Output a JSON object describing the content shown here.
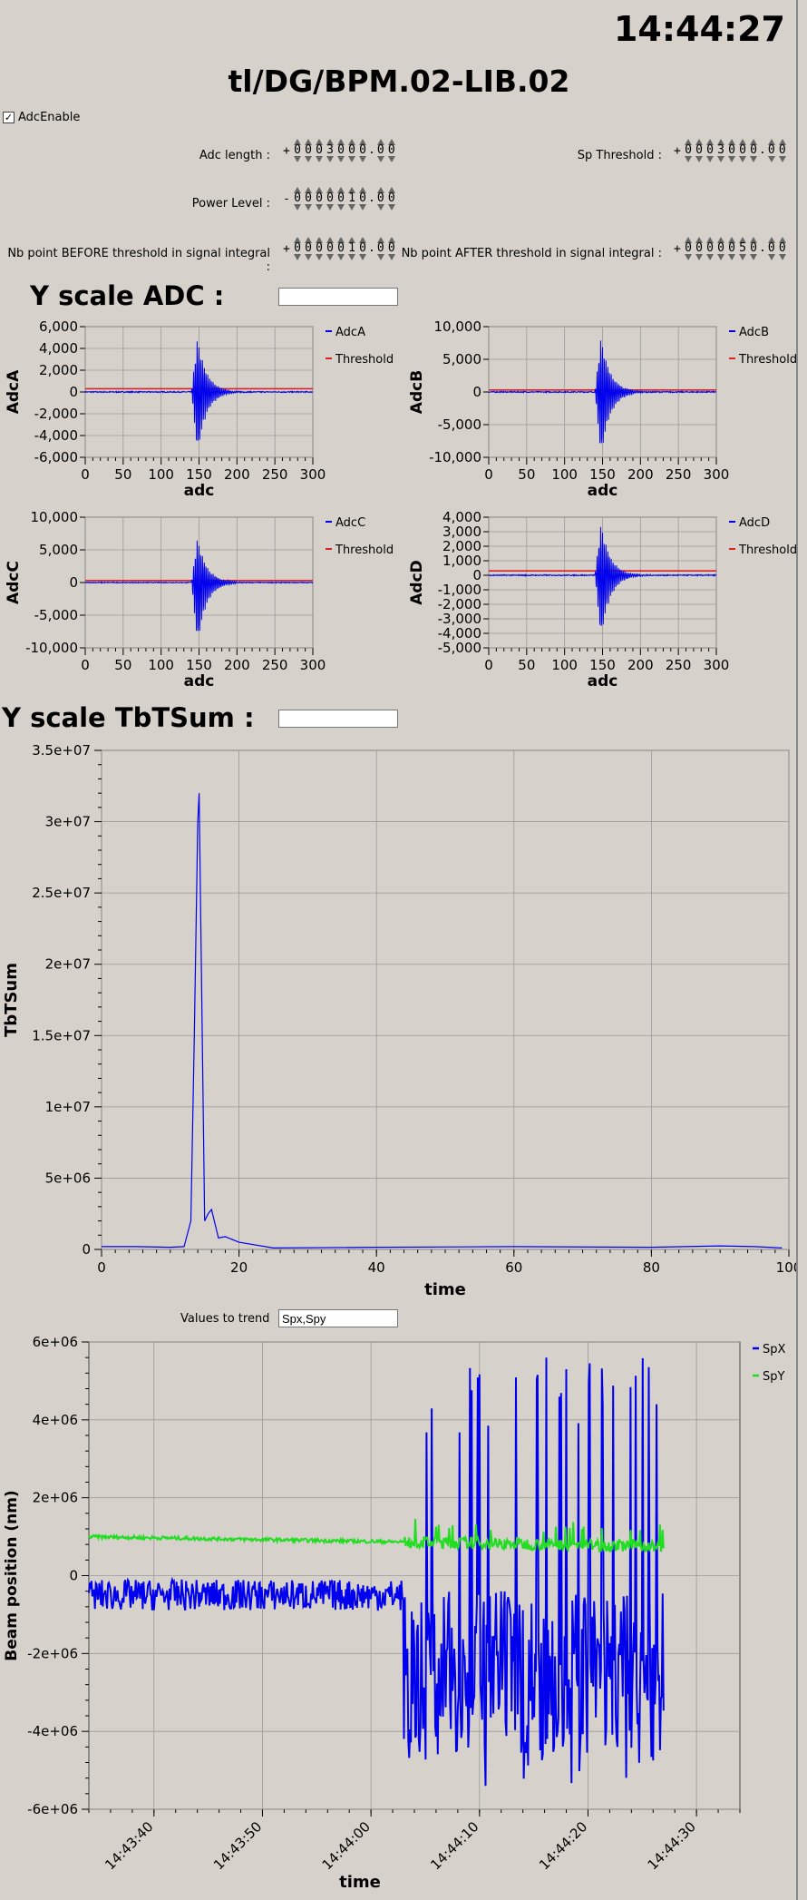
{
  "header": {
    "clock": "14:44:27",
    "device_name": "tl/DG/BPM.02-LIB.02"
  },
  "adc_enable": {
    "label": "AdcEnable",
    "checked": true
  },
  "params": [
    {
      "label": "Adc length :",
      "sign": "+",
      "digits": "0003000",
      "decimals": "00"
    },
    {
      "label": "Sp Threshold :",
      "sign": "+",
      "digits": "0003000",
      "decimals": "00"
    },
    {
      "label": "Power Level :",
      "sign": "-",
      "digits": "0000010",
      "decimals": "00"
    },
    {
      "label": "Nb point BEFORE threshold in signal integral :",
      "sign": "+",
      "digits": "0000010",
      "decimals": "00"
    },
    {
      "label": "Nb point AFTER threshold in signal integral :",
      "sign": "+",
      "digits": "0000050",
      "decimals": "00"
    }
  ],
  "sections": {
    "yscale_adc": {
      "label": "Y scale ADC :",
      "value": ""
    },
    "yscale_tbt": {
      "label": "Y scale TbTSum :",
      "value": ""
    },
    "trend": {
      "label": "Values to trend",
      "value": "Spx,Spy"
    }
  },
  "colors": {
    "primary": "#0000ee",
    "threshold": "#dd2222",
    "secondary": "#22dd22",
    "grid": "#9a9a9a",
    "plot_bg": "#d6d2cb"
  },
  "chart_data": [
    {
      "type": "line",
      "title": "",
      "xlabel": "adc",
      "ylabel": "AdcA",
      "xlim": [
        0,
        300
      ],
      "ylim": [
        -6000,
        6000
      ],
      "x_ticks": [
        "0",
        "50",
        "100",
        "150",
        "200",
        "250",
        "300"
      ],
      "y_ticks": [
        "6,000",
        "4,000",
        "2,000",
        "0",
        "-2,000",
        "-4,000",
        "-6,000"
      ],
      "legend": [
        "AdcA",
        "Threshold"
      ],
      "legend_position": "right",
      "grid": true,
      "threshold": 300,
      "burst_center": 148,
      "peak_high": 5000,
      "peak_low": -5700,
      "decay": 12
    },
    {
      "type": "line",
      "title": "",
      "xlabel": "adc",
      "ylabel": "AdcB",
      "xlim": [
        0,
        300
      ],
      "ylim": [
        -10000,
        10000
      ],
      "x_ticks": [
        "0",
        "50",
        "100",
        "150",
        "200",
        "250",
        "300"
      ],
      "y_ticks": [
        "10,000",
        "5,000",
        "0",
        "-5,000",
        "-10,000"
      ],
      "legend": [
        "AdcB",
        "Threshold"
      ],
      "legend_position": "right",
      "grid": true,
      "threshold": 300,
      "burst_center": 148,
      "peak_high": 8500,
      "peak_low": -10000,
      "decay": 12
    },
    {
      "type": "line",
      "title": "",
      "xlabel": "adc",
      "ylabel": "AdcC",
      "xlim": [
        0,
        300
      ],
      "ylim": [
        -10000,
        10000
      ],
      "x_ticks": [
        "0",
        "50",
        "100",
        "150",
        "200",
        "250",
        "300"
      ],
      "y_ticks": [
        "10,000",
        "5,000",
        "0",
        "-5,000",
        "-10,000"
      ],
      "legend": [
        "AdcC",
        "Threshold"
      ],
      "legend_position": "right",
      "grid": true,
      "threshold": 300,
      "burst_center": 148,
      "peak_high": 7000,
      "peak_low": -9500,
      "decay": 12
    },
    {
      "type": "line",
      "title": "",
      "xlabel": "adc",
      "ylabel": "AdcD",
      "xlim": [
        0,
        300
      ],
      "ylim": [
        -5000,
        4000
      ],
      "x_ticks": [
        "0",
        "50",
        "100",
        "150",
        "200",
        "250",
        "300"
      ],
      "y_ticks": [
        "4,000",
        "3,000",
        "2,000",
        "1,000",
        "0",
        "-1,000",
        "-2,000",
        "-3,000",
        "-4,000",
        "-5,000"
      ],
      "legend": [
        "AdcD",
        "Threshold"
      ],
      "legend_position": "right",
      "grid": true,
      "threshold": 300,
      "burst_center": 148,
      "peak_high": 3600,
      "peak_low": -4400,
      "decay": 12
    },
    {
      "type": "line",
      "title": "",
      "xlabel": "time",
      "ylabel": "TbTSum",
      "xlim": [
        0,
        100
      ],
      "ylim": [
        0,
        35000000
      ],
      "x_ticks": [
        "0",
        "20",
        "40",
        "60",
        "80",
        "100"
      ],
      "y_ticks": [
        "3.5e+07",
        "3e+07",
        "2.5e+07",
        "2e+07",
        "1.5e+07",
        "1e+07",
        "5e+06",
        "0"
      ],
      "grid": true,
      "x": [
        0,
        5,
        10,
        12,
        13,
        13.5,
        14,
        14.2,
        15,
        15.5,
        16,
        17,
        18,
        20,
        25,
        40,
        60,
        80,
        90,
        95,
        99
      ],
      "y": [
        200000,
        200000,
        150000,
        200000,
        2000000,
        15000000,
        30000000,
        32000000,
        2000000,
        2500000,
        2800000,
        800000,
        900000,
        500000,
        100000,
        150000,
        200000,
        150000,
        250000,
        200000,
        100000
      ]
    },
    {
      "type": "line",
      "title": "",
      "xlabel": "time",
      "ylabel": "Beam position (nm)",
      "xlim": [
        "14:43:34",
        "14:44:34"
      ],
      "ylim": [
        -6000000,
        6000000
      ],
      "x_ticks": [
        "14:43:40",
        "14:43:50",
        "14:44:00",
        "14:44:10",
        "14:44:20",
        "14:44:30"
      ],
      "y_ticks": [
        "6e+06",
        "4e+06",
        "2e+06",
        "0",
        "-2e+06",
        "-4e+06",
        "-6e+06"
      ],
      "legend": [
        "SpX",
        "SpY"
      ],
      "legend_position": "right",
      "grid": true,
      "series": [
        {
          "name": "SpX",
          "t_start": "14:43:34",
          "t_end": "14:44:27",
          "jump_at": "14:44:03",
          "mean_before": -500000,
          "noise_before": 400000,
          "mean_after": -2500000,
          "spikes_high": 5600000,
          "spikes_low": -5400000
        },
        {
          "name": "SpY",
          "t_start": "14:43:34",
          "t_end": "14:44:27",
          "value_start": 1000000,
          "value_end": 750000,
          "noise": 150000
        }
      ]
    }
  ]
}
